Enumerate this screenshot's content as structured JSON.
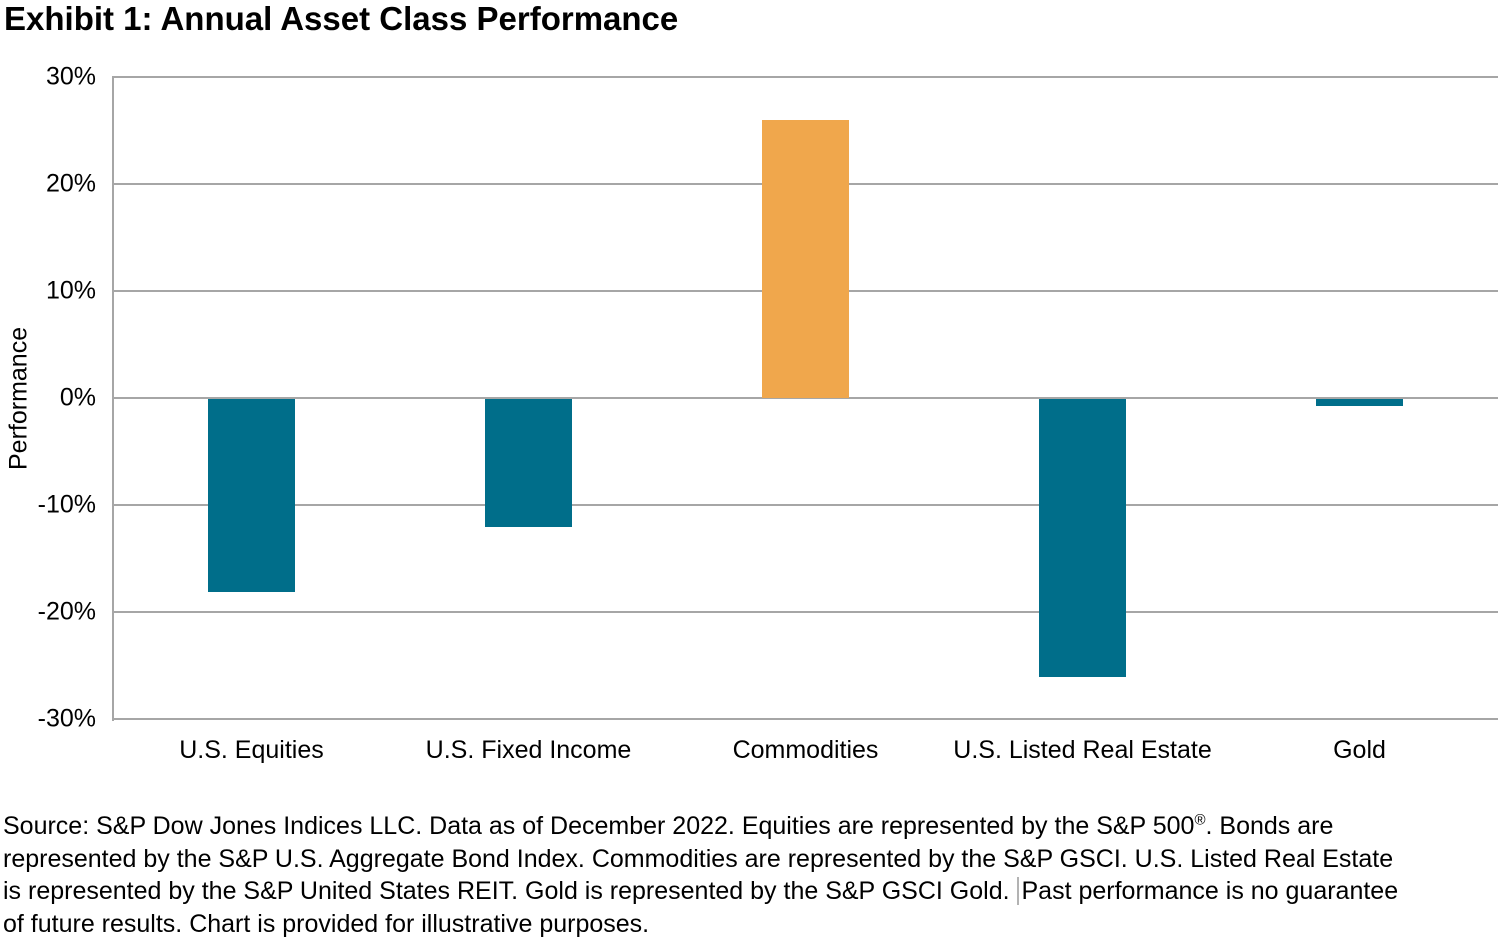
{
  "title": "Exhibit 1: Annual Asset Class Performance",
  "chart_data": {
    "type": "bar",
    "title": "Exhibit 1: Annual Asset Class Performance",
    "categories": [
      "U.S. Equities",
      "U.S. Fixed Income",
      "Commodities",
      "U.S. Listed Real Estate",
      "Gold"
    ],
    "values": [
      -18,
      -12,
      26,
      -26,
      -0.7
    ],
    "bar_colors": [
      "#006E8A",
      "#006E8A",
      "#F0A74C",
      "#006E8A",
      "#006E8A"
    ],
    "xlabel": "",
    "ylabel": "Performance",
    "ylim": [
      -30,
      30
    ],
    "ytick_step": 10,
    "ytick_labels": [
      "30%",
      "20%",
      "10%",
      "0%",
      "-10%",
      "-20%",
      "-30%"
    ],
    "grid": true,
    "legend_position": "none"
  },
  "colors": {
    "negative_bar": "#006E8A",
    "highlight_bar": "#F0A74C",
    "gridline": "#A6A6A6",
    "text": "#000000"
  },
  "footer": {
    "line1_pre": "Source: S&P Dow Jones Indices LLC. Data as of December 2022. Equities are represented by the S&P 500",
    "line1_sup": "®",
    "line1_post": ". Bonds are",
    "line2": "represented by the S&P U.S. Aggregate Bond Index. Commodities are represented by the S&P GSCI. U.S. Listed Real Estate",
    "line3_pre": "is represented by the S&P United States REIT. Gold is represented by the S&P GSCI Gold. ",
    "line3_post": "Past performance is no guarantee",
    "line4": "of future results. Chart is provided for illustrative purposes."
  }
}
